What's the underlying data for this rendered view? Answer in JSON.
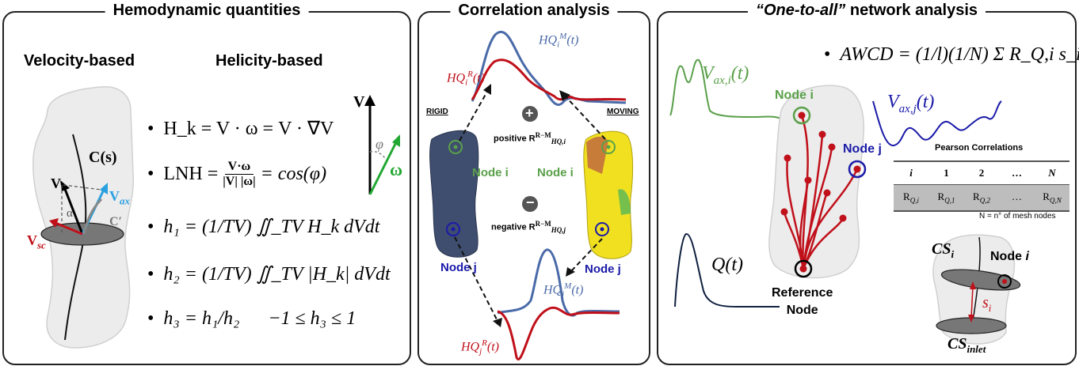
{
  "panels": {
    "left": {
      "title": "Hemodynamic quantities",
      "velocity_heading": "Velocity-based",
      "helicity_heading": "Helicity-based",
      "formulas": {
        "hk": "H_k = V · ω = V · ∇V",
        "lnh_lhs": "LNH =",
        "lnh_num": "V·ω",
        "lnh_den": "|V| |ω|",
        "lnh_rhs": "= cos(φ)",
        "h1": "h₁ = (1/TV) ∬_TV H_k dVdt",
        "h2": "h₂ = (1/TV) ∬_TV |H_k| dVdt",
        "h3": "h₃ = h₁/h₂",
        "h3_range": "−1 ≤ h₃ ≤ 1"
      },
      "vessel_labels": {
        "centerline": "C(s)",
        "v": "V",
        "v_ax": "V",
        "v_ax_sub": "ax",
        "alpha": "α",
        "c_prime": "C′",
        "v_sc": "V",
        "v_sc_sub": "sc"
      },
      "vector_labels": {
        "v": "V",
        "phi": "φ",
        "omega": "ω"
      }
    },
    "middle": {
      "title": "Correlation analysis",
      "rigid_label": "RIGID",
      "moving_label": "MOVING",
      "node_i_left": "Node i",
      "node_i_right": "Node i",
      "node_j_left": "Node j",
      "node_j_right": "Node j",
      "positive_label": "positive R",
      "positive_sub": "HQ,i",
      "positive_sup": "R−M",
      "negative_label": "negative R",
      "negative_sub": "HQ,j",
      "negative_sup": "R−M",
      "plus_symbol": "+",
      "minus_symbol": "−",
      "hq_i_m": "HQ",
      "hq_i_m_sub": "i",
      "hq_i_m_sup": "M",
      "hq_i_r": "HQ",
      "hq_i_r_sub": "i",
      "hq_i_r_sup": "R",
      "hq_j_m": "HQ",
      "hq_j_m_sub": "j",
      "hq_j_m_sup": "M",
      "hq_j_r": "HQ",
      "hq_j_r_sub": "j",
      "hq_j_r_sup": "R",
      "t_arg": "(t)"
    },
    "right": {
      "title_quoted": "“One-to-all”",
      "title_rest": " network analysis",
      "awcd_bullet": "•",
      "awcd_lhs": "AWCD =",
      "awcd_rhs": "(1/l)(1/N) Σ R_Q,i s_i",
      "v_ax_i": "V",
      "v_ax_i_sub": "ax,i",
      "v_ax_j": "V",
      "v_ax_j_sub": "ax,j",
      "t_arg": "(t)",
      "q_t": "Q(t)",
      "node_i": "Node i",
      "node_j": "Node j",
      "reference_node_1": "Reference",
      "reference_node_2": "Node",
      "pearson_title": "Pearson Correlations",
      "pearson_headers": [
        "i",
        "1",
        "2",
        "…",
        "N"
      ],
      "pearson_values": [
        "R",
        "R",
        "R",
        "…",
        "R"
      ],
      "pearson_subs": [
        "Q,i",
        "Q,1",
        "Q,2",
        "",
        "Q,N"
      ],
      "pearson_note": "N = n° of mesh nodes",
      "cs_i": "CS",
      "cs_i_sub": "i",
      "cs_inlet": "CS",
      "cs_inlet_sub": "inlet",
      "node_i_bottom": "Node i",
      "s_i": "s",
      "s_i_sub": "i"
    }
  },
  "colors": {
    "green": "#5aa04a",
    "dark_blue": "#1a1aa8",
    "red": "#c0101a",
    "steel_blue": "#4a6aa8",
    "light_blue": "#2aa0e0"
  }
}
